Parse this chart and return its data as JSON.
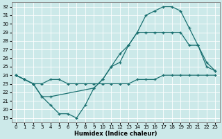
{
  "xlabel": "Humidex (Indice chaleur)",
  "xlim": [
    -0.5,
    23.5
  ],
  "ylim": [
    18.5,
    32.5
  ],
  "yticks": [
    19,
    20,
    21,
    22,
    23,
    24,
    25,
    26,
    27,
    28,
    29,
    30,
    31,
    32
  ],
  "xticks": [
    0,
    1,
    2,
    3,
    4,
    5,
    6,
    7,
    8,
    9,
    10,
    11,
    12,
    13,
    14,
    15,
    16,
    17,
    18,
    19,
    20,
    21,
    22,
    23
  ],
  "bg_color": "#cce9e9",
  "line_color": "#1a7070",
  "line1_x": [
    0,
    1,
    2,
    3,
    4,
    5,
    6,
    7,
    8,
    9,
    10,
    11,
    12,
    13,
    14,
    15,
    16,
    17,
    18,
    19,
    20,
    21,
    22,
    23
  ],
  "line1_y": [
    24.0,
    23.5,
    23.0,
    23.0,
    23.5,
    23.5,
    23.0,
    23.0,
    23.0,
    23.0,
    23.0,
    23.0,
    23.0,
    23.0,
    23.5,
    23.5,
    23.5,
    24.0,
    24.0,
    24.0,
    24.0,
    24.0,
    24.0,
    24.0
  ],
  "line2_x": [
    0,
    1,
    2,
    3,
    4,
    9,
    10,
    11,
    12,
    13,
    14,
    15,
    16,
    17,
    18,
    19,
    20,
    21,
    22,
    23
  ],
  "line2_y": [
    24.0,
    23.5,
    23.0,
    21.5,
    21.5,
    22.5,
    23.5,
    25.0,
    26.5,
    27.5,
    29.0,
    29.0,
    29.0,
    29.0,
    29.0,
    29.0,
    27.5,
    27.5,
    25.0,
    24.5
  ],
  "line3_x": [
    0,
    1,
    2,
    3,
    4,
    5,
    6,
    7,
    8,
    9,
    10,
    11,
    12,
    13,
    14,
    15,
    16,
    17,
    18,
    19,
    20,
    21,
    22,
    23
  ],
  "line3_y": [
    24.0,
    23.5,
    23.0,
    21.5,
    20.5,
    19.5,
    19.5,
    19.0,
    20.5,
    22.5,
    23.5,
    25.0,
    25.5,
    27.5,
    29.0,
    31.0,
    31.5,
    32.0,
    32.0,
    31.5,
    29.5,
    27.5,
    25.5,
    24.5
  ]
}
